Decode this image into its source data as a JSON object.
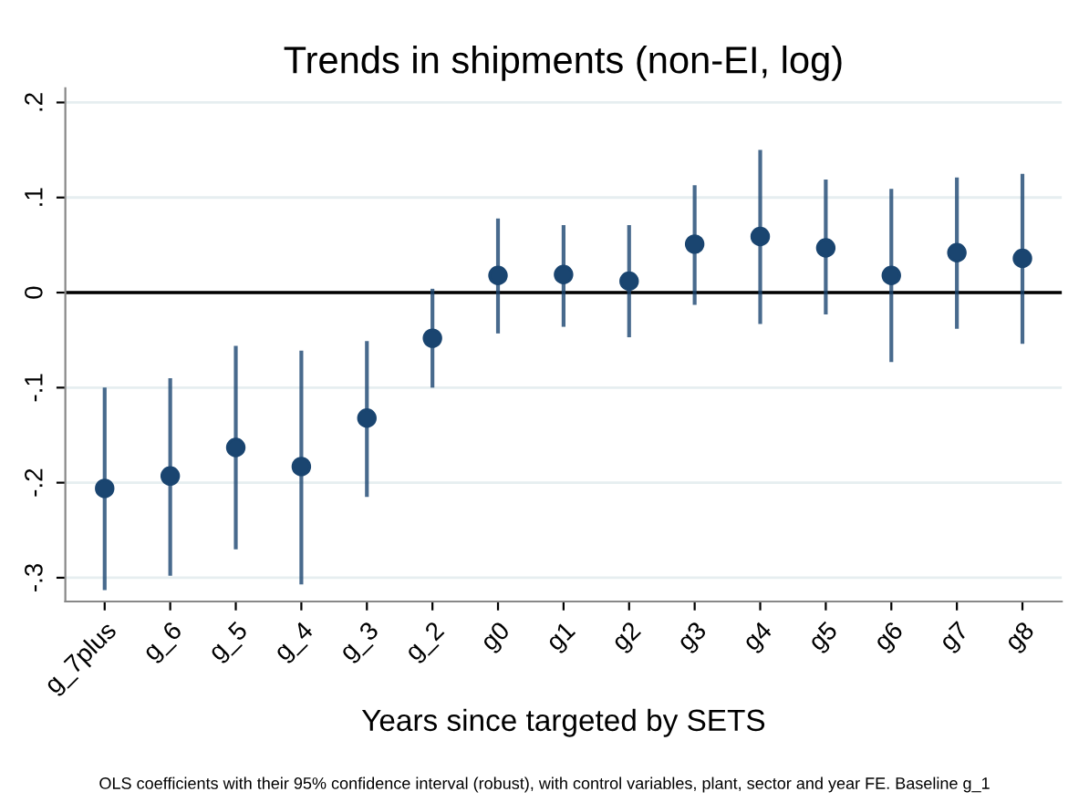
{
  "chart_data": {
    "type": "scatter",
    "title": "Trends in shipments (non-EI, log)",
    "xlabel": "Years since targeted by SETS",
    "categories": [
      "g_7plus",
      "g_6",
      "g_5",
      "g_4",
      "g_3",
      "g_2",
      "g0",
      "g1",
      "g2",
      "g3",
      "g4",
      "g5",
      "g6",
      "g7",
      "g8"
    ],
    "series": [
      {
        "color": "#1a4570",
        "values": [
          -0.206,
          -0.193,
          -0.163,
          -0.183,
          -0.132,
          -0.048,
          0.018,
          0.019,
          0.012,
          0.051,
          0.059,
          0.047,
          0.018,
          0.042,
          0.036
        ],
        "errors": [
          [
            -0.313,
            -0.1
          ],
          [
            -0.298,
            -0.09
          ],
          [
            -0.27,
            -0.056
          ],
          [
            -0.307,
            -0.061
          ],
          [
            -0.215,
            -0.051
          ],
          [
            -0.1,
            0.004
          ],
          [
            -0.043,
            0.078
          ],
          [
            -0.036,
            0.071
          ],
          [
            -0.047,
            0.071
          ],
          [
            -0.013,
            0.113
          ],
          [
            -0.033,
            0.15
          ],
          [
            -0.023,
            0.119
          ],
          [
            -0.073,
            0.109
          ],
          [
            -0.038,
            0.121
          ],
          [
            -0.054,
            0.125
          ]
        ]
      }
    ],
    "ylim": [
      -0.325,
      0.215
    ],
    "yticks": [
      {
        "value": -0.3,
        "label": "-.3"
      },
      {
        "value": -0.2,
        "label": "-.2"
      },
      {
        "value": -0.1,
        "label": "-.1"
      },
      0,
      {
        "value": 0.1,
        "label": ".1"
      },
      {
        "value": 0.2,
        "label": ".2"
      }
    ],
    "ref_lines": [
      {
        "axis": "y",
        "value": 0,
        "color": "#000000"
      }
    ],
    "grid": "y",
    "marker": "circle",
    "legend": false,
    "annotations": [
      "OLS coefficients with their 95% confidence interval (robust), with control variables, plant, sector and year FE. Baseline g_1"
    ]
  }
}
